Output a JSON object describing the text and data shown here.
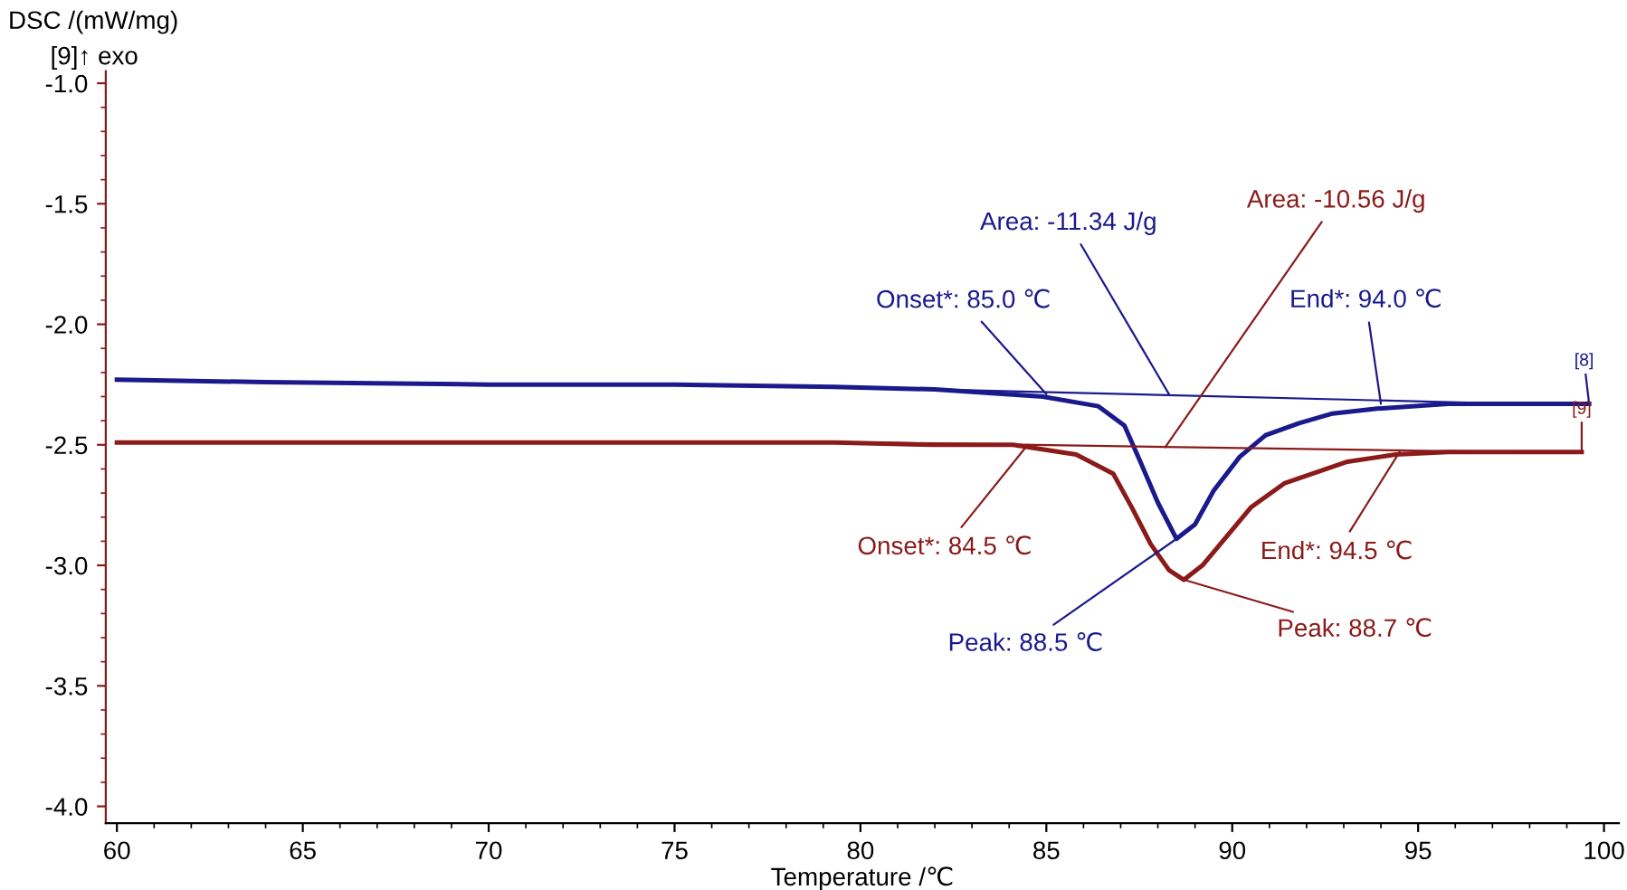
{
  "chart_data": {
    "type": "line",
    "xlabel": "Temperature /℃",
    "ylabel": "DSC /(mW/mg)",
    "xlim": [
      59.7,
      100.4
    ],
    "ylim": [
      -4.07,
      -0.95
    ],
    "xticks": [
      60,
      65,
      70,
      75,
      80,
      85,
      90,
      95,
      100
    ],
    "yticks": [
      {
        "value": -1,
        "label": "-1.0"
      },
      -1.5,
      {
        "value": -2,
        "label": "-2.0"
      },
      -2.5,
      {
        "value": -3,
        "label": "-3.0"
      },
      -3.5,
      {
        "value": -4,
        "label": "-4.0"
      }
    ],
    "grid": false,
    "legend": false,
    "marker": "none",
    "line_style": "solid",
    "series": [
      {
        "color": "#1a1a8c",
        "x": [
          60,
          64,
          70,
          75,
          79.3,
          82,
          84.9,
          86.4,
          87.1,
          87.5,
          88.0,
          88.5,
          89.0,
          89.5,
          90.2,
          90.9,
          91.8,
          92.7,
          93.9,
          95.8,
          97.5,
          99.6
        ],
        "values": [
          -2.23,
          -2.24,
          -2.25,
          -2.25,
          -2.26,
          -2.27,
          -2.3,
          -2.34,
          -2.42,
          -2.56,
          -2.74,
          -2.89,
          -2.83,
          -2.69,
          -2.55,
          -2.46,
          -2.41,
          -2.37,
          -2.35,
          -2.33,
          -2.33,
          -2.33
        ]
      },
      {
        "color": "#8b1a1a",
        "x": [
          60,
          64,
          70,
          75,
          79.3,
          82,
          84.1,
          85.8,
          86.8,
          87.3,
          87.8,
          88.3,
          88.7,
          89.2,
          89.8,
          90.5,
          91.4,
          93.1,
          94.4,
          95.8,
          97.5,
          99.4
        ],
        "values": [
          -2.49,
          -2.49,
          -2.49,
          -2.49,
          -2.49,
          -2.5,
          -2.5,
          -2.54,
          -2.62,
          -2.76,
          -2.91,
          -3.02,
          -3.06,
          -3.0,
          -2.89,
          -2.76,
          -2.66,
          -2.57,
          -2.54,
          -2.53,
          -2.53,
          -2.53
        ]
      },
      {
        "color": "#1a1a8c",
        "x": [
          79.3,
          97.7
        ],
        "values": [
          -2.26,
          -2.33
        ]
      },
      {
        "color": "#8b1a1a",
        "x": [
          80.2,
          97.6
        ],
        "values": [
          -2.49,
          -2.53
        ]
      }
    ],
    "annotations": [
      {
        "text": "Area: -11.34 J/g",
        "x": 88.3,
        "y": -2.29
      },
      {
        "text": "Area: -10.56 J/g",
        "x": 88.2,
        "y": -2.51
      },
      {
        "text": "Onset*: 85.0 ℃",
        "x": 85.0,
        "y": -2.29
      },
      {
        "text": "End*: 94.0 ℃",
        "x": 94.0,
        "y": -2.33
      },
      {
        "text": "Onset*: 84.5 ℃",
        "x": 84.5,
        "y": -2.5
      },
      {
        "text": "End*: 94.5 ℃",
        "x": 94.5,
        "y": -2.53
      },
      {
        "text": "Peak: 88.5 ℃",
        "x": 88.5,
        "y": -2.89
      },
      {
        "text": "Peak: 88.7 ℃",
        "x": 88.7,
        "y": -3.06
      },
      {
        "text": "[8]",
        "x": 99.6,
        "y": -2.33
      },
      {
        "text": "[9]",
        "x": 99.4,
        "y": -2.53
      },
      "[9]↑ exo"
    ]
  }
}
